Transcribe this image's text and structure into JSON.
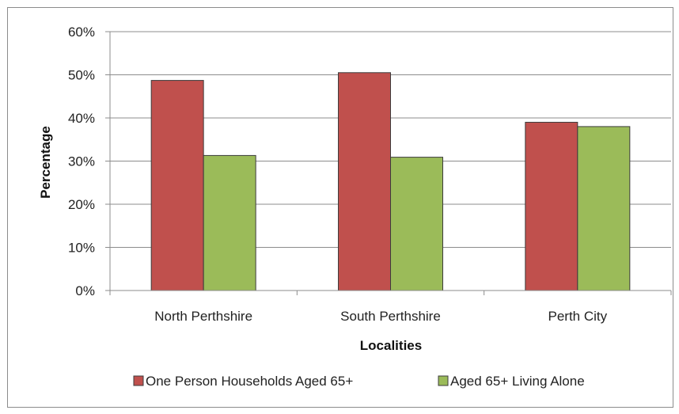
{
  "chart_data": {
    "type": "bar",
    "categories": [
      "North Perthshire",
      "South Perthshire",
      "Perth City"
    ],
    "series": [
      {
        "name": "One Person Households Aged 65+",
        "values": [
          48.7,
          50.5,
          39.0
        ],
        "color": "#c0504d"
      },
      {
        "name": "Aged 65+ Living Alone",
        "values": [
          31.3,
          30.9,
          38.0
        ],
        "color": "#9bbb59"
      }
    ],
    "xlabel": "Localities",
    "ylabel": "Percentage",
    "ylim": [
      0,
      60
    ],
    "yticks": [
      0,
      10,
      20,
      30,
      40,
      50,
      60
    ],
    "ytick_labels": [
      "0%",
      "10%",
      "20%",
      "30%",
      "40%",
      "50%",
      "60%"
    ],
    "grid": true,
    "legend": "bottom"
  }
}
